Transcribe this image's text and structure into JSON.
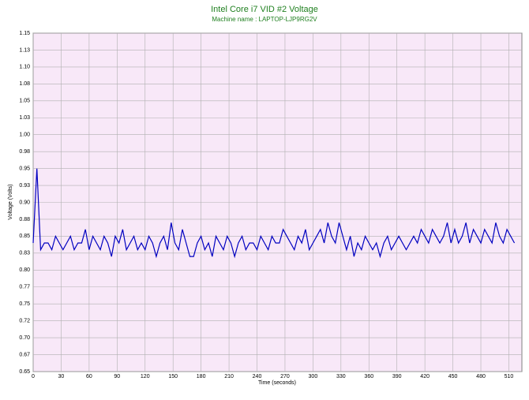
{
  "chart_data": {
    "type": "line",
    "title": "Intel Core i7 VID #2 Voltage",
    "subtitle": "Machine name : LAPTOP-LJP9RG2V",
    "x_label": "Time (seconds)",
    "y_label": "Voltage (Volts)",
    "xlim": [
      0,
      524
    ],
    "ylim": [
      0.65,
      1.15
    ],
    "xticks": [
      0,
      30,
      60,
      90,
      120,
      150,
      180,
      210,
      240,
      270,
      300,
      330,
      360,
      390,
      420,
      450,
      480,
      510
    ],
    "yticks": [
      0.65,
      {
        "value": 0.675,
        "label": "0.67"
      },
      {
        "value": 0.7,
        "label": "0.70"
      },
      {
        "value": 0.725,
        "label": "0.72"
      },
      0.75,
      {
        "value": 0.775,
        "label": "0.77"
      },
      {
        "value": 0.8,
        "label": "0.80"
      },
      {
        "value": 0.825,
        "label": "0.83"
      },
      0.85,
      {
        "value": 0.875,
        "label": "0.88"
      },
      {
        "value": 0.9,
        "label": "0.90"
      },
      {
        "value": 0.925,
        "label": "0.93"
      },
      0.95,
      {
        "value": 0.975,
        "label": "0.98"
      },
      {
        "value": 1,
        "label": "1.00"
      },
      {
        "value": 1.025,
        "label": "1.03"
      },
      1.05,
      {
        "value": 1.075,
        "label": "1.08"
      },
      {
        "value": 1.1,
        "label": "1.10"
      },
      {
        "value": 1.125,
        "label": "1.13"
      },
      1.15
    ],
    "grid": true,
    "x": [
      0,
      4,
      8,
      12,
      16,
      20,
      24,
      28,
      32,
      36,
      40,
      44,
      48,
      52,
      56,
      60,
      64,
      68,
      72,
      76,
      80,
      84,
      88,
      92,
      96,
      100,
      104,
      108,
      112,
      116,
      120,
      124,
      128,
      132,
      136,
      140,
      144,
      148,
      152,
      156,
      160,
      164,
      168,
      172,
      176,
      180,
      184,
      188,
      192,
      196,
      200,
      204,
      208,
      212,
      216,
      220,
      224,
      228,
      232,
      236,
      240,
      244,
      248,
      252,
      256,
      260,
      264,
      268,
      272,
      276,
      280,
      284,
      288,
      292,
      296,
      300,
      304,
      308,
      312,
      316,
      320,
      324,
      328,
      332,
      336,
      340,
      344,
      348,
      352,
      356,
      360,
      364,
      368,
      372,
      376,
      380,
      384,
      388,
      392,
      396,
      400,
      404,
      408,
      412,
      416,
      420,
      424,
      428,
      432,
      436,
      440,
      444,
      448,
      452,
      456,
      460,
      464,
      468,
      472,
      476,
      480,
      484,
      488,
      492,
      496,
      500,
      504,
      508,
      512,
      516
    ],
    "series": [
      {
        "color": "#0000c0",
        "values": [
          0.84,
          0.95,
          0.83,
          0.84,
          0.84,
          0.83,
          0.85,
          0.84,
          0.83,
          0.84,
          0.85,
          0.83,
          0.84,
          0.84,
          0.86,
          0.83,
          0.85,
          0.84,
          0.83,
          0.85,
          0.84,
          0.82,
          0.85,
          0.84,
          0.86,
          0.83,
          0.84,
          0.85,
          0.83,
          0.84,
          0.83,
          0.85,
          0.84,
          0.82,
          0.84,
          0.85,
          0.83,
          0.87,
          0.84,
          0.83,
          0.86,
          0.84,
          0.82,
          0.82,
          0.84,
          0.85,
          0.83,
          0.84,
          0.82,
          0.85,
          0.84,
          0.83,
          0.85,
          0.84,
          0.82,
          0.84,
          0.85,
          0.83,
          0.84,
          0.84,
          0.83,
          0.85,
          0.84,
          0.83,
          0.85,
          0.84,
          0.84,
          0.86,
          0.85,
          0.84,
          0.83,
          0.85,
          0.84,
          0.86,
          0.83,
          0.84,
          0.85,
          0.86,
          0.84,
          0.87,
          0.85,
          0.84,
          0.87,
          0.85,
          0.83,
          0.85,
          0.82,
          0.84,
          0.83,
          0.85,
          0.84,
          0.83,
          0.84,
          0.82,
          0.84,
          0.85,
          0.83,
          0.84,
          0.85,
          0.84,
          0.83,
          0.84,
          0.85,
          0.84,
          0.86,
          0.85,
          0.84,
          0.86,
          0.85,
          0.84,
          0.85,
          0.87,
          0.84,
          0.86,
          0.84,
          0.85,
          0.87,
          0.84,
          0.86,
          0.85,
          0.84,
          0.86,
          0.85,
          0.84,
          0.87,
          0.85,
          0.84,
          0.86,
          0.85,
          0.84
        ]
      }
    ]
  }
}
